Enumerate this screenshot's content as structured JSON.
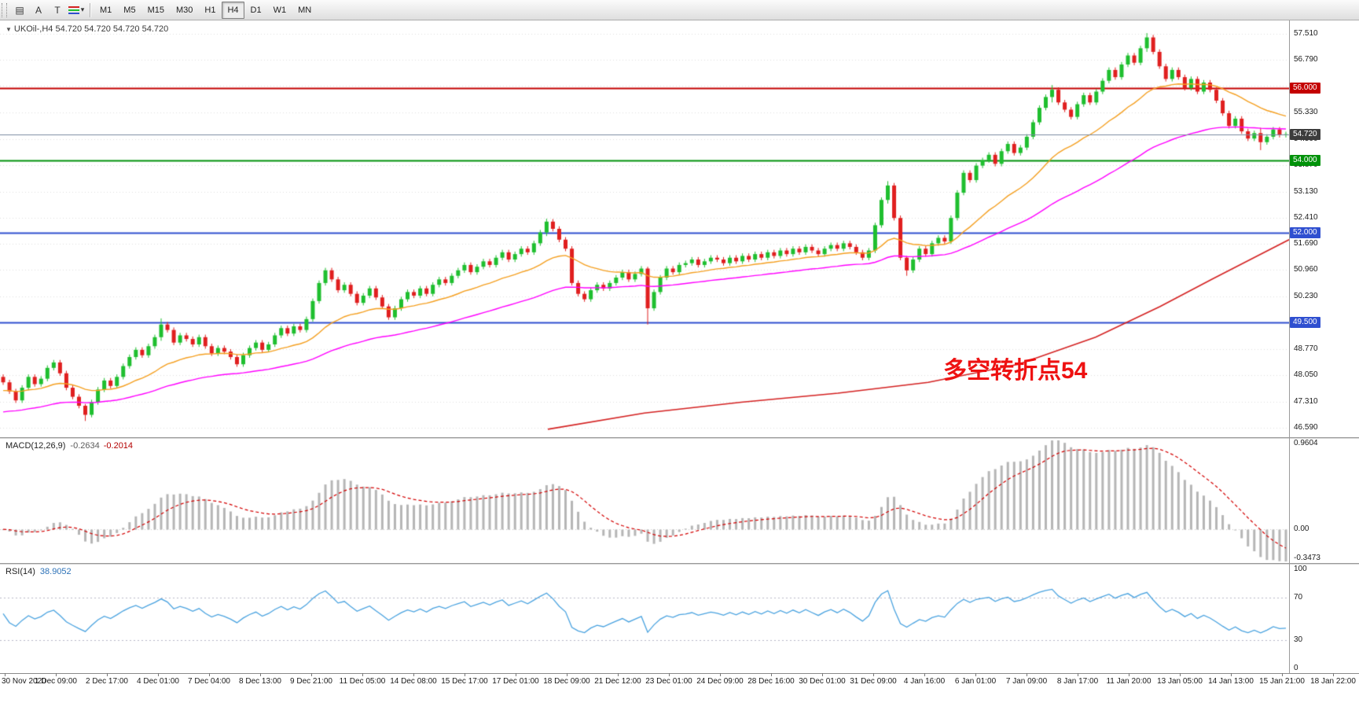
{
  "toolbar": {
    "tools": [
      {
        "name": "chart-template-icon",
        "glyph": "▤"
      },
      {
        "name": "cursor-tool",
        "glyph": "A"
      },
      {
        "name": "text-tool",
        "glyph": "T"
      },
      {
        "name": "line-style-caret",
        "glyph": "▾"
      }
    ],
    "timeframes": [
      {
        "label": "M1"
      },
      {
        "label": "M5"
      },
      {
        "label": "M15"
      },
      {
        "label": "M30"
      },
      {
        "label": "H1"
      },
      {
        "label": "H4",
        "active": true
      },
      {
        "label": "D1"
      },
      {
        "label": "W1"
      },
      {
        "label": "MN"
      }
    ]
  },
  "main_chart": {
    "marker": "▼",
    "symbol_line": "UKOil-,H4 54.720 54.720 54.720 54.720",
    "annotation": {
      "text": "多空转折点54",
      "color": "#ee1111"
    },
    "price_axis_labels": [
      {
        "text": "57.510",
        "price": 57.51
      },
      {
        "text": "56.790",
        "price": 56.79
      },
      {
        "text": "55.330",
        "price": 55.33
      },
      {
        "text": "54.590",
        "price": 54.59
      },
      {
        "text": "53.870",
        "price": 53.87
      },
      {
        "text": "53.130",
        "price": 53.13
      },
      {
        "text": "52.410",
        "price": 52.41
      },
      {
        "text": "51.690",
        "price": 51.69
      },
      {
        "text": "50.960",
        "price": 50.96
      },
      {
        "text": "50.230",
        "price": 50.23
      },
      {
        "text": "48.770",
        "price": 48.77
      },
      {
        "text": "48.050",
        "price": 48.05
      },
      {
        "text": "47.310",
        "price": 47.31
      },
      {
        "text": "46.590",
        "price": 46.59
      }
    ],
    "price_badges": [
      {
        "text": "56.000",
        "price": 56.0,
        "bg": "#c40000"
      },
      {
        "text": "54.720",
        "price": 54.72,
        "bg": "#3c3c3c"
      },
      {
        "text": "54.000",
        "price": 54.0,
        "bg": "#00920a"
      },
      {
        "text": "52.000",
        "price": 52.0,
        "bg": "#2f4fd0"
      },
      {
        "text": "49.500",
        "price": 49.5,
        "bg": "#2f4fd0"
      }
    ]
  },
  "macd_panel": {
    "label": "MACD(12,26,9)",
    "value_main": "-0.2634",
    "value_signal": "-0.2014",
    "axis": [
      {
        "text": "0.9604",
        "v": 0.9604
      },
      {
        "text": "0.00",
        "v": 0
      },
      {
        "text": "-0.3473",
        "v": -0.3473
      }
    ]
  },
  "rsi_panel": {
    "label": "RSI(14)",
    "value": "38.9052",
    "axis": [
      {
        "text": "100",
        "v": 100
      },
      {
        "text": "70",
        "v": 70
      },
      {
        "text": "30",
        "v": 30
      },
      {
        "text": "0",
        "v": 0
      }
    ]
  },
  "time_axis": {
    "labels": [
      "30 Nov 2020",
      "1 Dec 09:00",
      "2 Dec 17:00",
      "4 Dec 01:00",
      "7 Dec 04:00",
      "8 Dec 13:00",
      "9 Dec 21:00",
      "11 Dec 05:00",
      "14 Dec 08:00",
      "15 Dec 17:00",
      "17 Dec 01:00",
      "18 Dec 09:00",
      "21 Dec 12:00",
      "23 Dec 01:00",
      "24 Dec 09:00",
      "28 Dec 16:00",
      "30 Dec 01:00",
      "31 Dec 09:00",
      "4 Jan 16:00",
      "6 Jan 01:00",
      "7 Jan 09:00",
      "8 Jan 17:00",
      "11 Jan 20:00",
      "13 Jan 05:00",
      "14 Jan 13:00",
      "15 Jan 21:00",
      "18 Jan 22:00"
    ]
  },
  "chart_data": {
    "type": "candlestick",
    "symbol": "UKOil-",
    "timeframe": "H4",
    "title": "UKOil-,H4",
    "ohlc_current": [
      54.72,
      54.72,
      54.72,
      54.72
    ],
    "price_range": [
      46.33,
      57.87
    ],
    "open_first": 48.0,
    "closes": [
      47.85,
      47.6,
      47.35,
      47.7,
      48.0,
      47.8,
      47.95,
      48.25,
      48.4,
      48.1,
      47.7,
      47.45,
      47.2,
      46.95,
      47.3,
      47.65,
      47.9,
      47.75,
      48.0,
      48.3,
      48.55,
      48.75,
      48.6,
      48.85,
      49.1,
      49.45,
      49.3,
      48.95,
      49.15,
      49.05,
      48.9,
      49.1,
      48.85,
      48.65,
      48.8,
      48.7,
      48.55,
      48.35,
      48.6,
      48.8,
      48.95,
      48.75,
      48.9,
      49.15,
      49.35,
      49.2,
      49.4,
      49.3,
      49.6,
      50.1,
      50.6,
      50.95,
      50.7,
      50.4,
      50.55,
      50.3,
      50.05,
      50.25,
      50.45,
      50.2,
      49.95,
      49.65,
      49.9,
      50.15,
      50.35,
      50.25,
      50.45,
      50.3,
      50.55,
      50.7,
      50.6,
      50.8,
      50.95,
      51.1,
      50.9,
      51.05,
      51.2,
      51.1,
      51.3,
      51.45,
      51.25,
      51.4,
      51.55,
      51.45,
      51.7,
      52.0,
      52.3,
      52.1,
      51.8,
      51.55,
      50.6,
      50.3,
      50.15,
      50.4,
      50.55,
      50.45,
      50.6,
      50.75,
      50.9,
      50.7,
      50.85,
      51.0,
      49.9,
      50.35,
      50.75,
      51.0,
      50.9,
      51.1,
      51.15,
      51.25,
      51.1,
      51.2,
      51.3,
      51.25,
      51.15,
      51.3,
      51.2,
      51.35,
      51.25,
      51.4,
      51.3,
      51.45,
      51.35,
      51.5,
      51.4,
      51.55,
      51.45,
      51.6,
      51.5,
      51.4,
      51.55,
      51.65,
      51.55,
      51.7,
      51.6,
      51.45,
      51.3,
      51.5,
      52.2,
      52.9,
      53.3,
      52.4,
      51.3,
      50.95,
      51.25,
      51.55,
      51.4,
      51.7,
      51.85,
      51.75,
      52.4,
      53.1,
      53.65,
      53.45,
      53.85,
      54.0,
      54.15,
      53.9,
      54.25,
      54.45,
      54.2,
      54.35,
      54.65,
      55.05,
      55.45,
      55.75,
      55.95,
      55.6,
      55.4,
      55.2,
      55.55,
      55.8,
      55.6,
      55.9,
      56.2,
      56.5,
      56.3,
      56.65,
      56.9,
      56.7,
      57.1,
      57.4,
      57.0,
      56.6,
      56.25,
      56.5,
      56.3,
      56.0,
      56.25,
      55.9,
      56.15,
      55.95,
      55.65,
      55.3,
      54.95,
      55.15,
      54.8,
      54.6,
      54.75,
      54.5,
      54.65,
      54.85,
      54.7,
      54.72
    ],
    "default_wick": 0.07,
    "wick_overrides": {
      "13": [
        47.25,
        46.78
      ],
      "25": [
        49.62,
        49.0
      ],
      "86": [
        52.38,
        51.9
      ],
      "102": [
        51.05,
        49.45
      ],
      "140": [
        53.42,
        52.8
      ],
      "143": [
        51.35,
        50.8
      ],
      "166": [
        56.08,
        55.6
      ],
      "181": [
        57.52,
        57.0
      ],
      "199": [
        54.9,
        54.28
      ]
    },
    "up_color": "#1fbf2f",
    "down_color": "#e01f1f",
    "grid_prices": [
      57.51,
      56.79,
      56.07,
      55.33,
      54.59,
      53.87,
      53.13,
      52.41,
      51.69,
      50.96,
      50.23,
      49.5,
      48.77,
      48.05,
      47.31,
      46.59
    ],
    "h_lines": [
      {
        "price": 56.0,
        "color": "#c40000",
        "width": 2
      },
      {
        "price": 54.0,
        "color": "#00920a",
        "width": 2
      },
      {
        "price": 52.0,
        "color": "#2f4fd0",
        "width": 2
      },
      {
        "price": 49.5,
        "color": "#2f4fd0",
        "width": 2
      }
    ],
    "current_price_line": {
      "price": 54.72,
      "color": "#7a8aa0"
    },
    "moving_averages": {
      "fast": {
        "period": 21,
        "seed": 47.6,
        "color": "#f5a021"
      },
      "medium": {
        "period": 55,
        "seed": 47.0,
        "color": "#ff00ff"
      },
      "slow_anchors": {
        "color": "#d42222",
        "points": [
          [
            0.425,
            46.55
          ],
          [
            0.5,
            47.0
          ],
          [
            0.575,
            47.3
          ],
          [
            0.65,
            47.55
          ],
          [
            0.72,
            47.85
          ],
          [
            0.79,
            48.35
          ],
          [
            0.85,
            49.1
          ],
          [
            0.9,
            49.95
          ],
          [
            0.94,
            50.7
          ],
          [
            0.97,
            51.25
          ],
          [
            1.0,
            51.8
          ]
        ]
      }
    },
    "macd": {
      "fast": 12,
      "slow": 26,
      "signal": 9,
      "scale_max": 0.9604,
      "scale_min": -0.3473,
      "hist_color": "#b6b6b6",
      "signal_color": "#d40000"
    },
    "rsi": {
      "period": 14,
      "levels": [
        70,
        30
      ],
      "color": "#4aa3e0",
      "last": 38.9052
    }
  }
}
